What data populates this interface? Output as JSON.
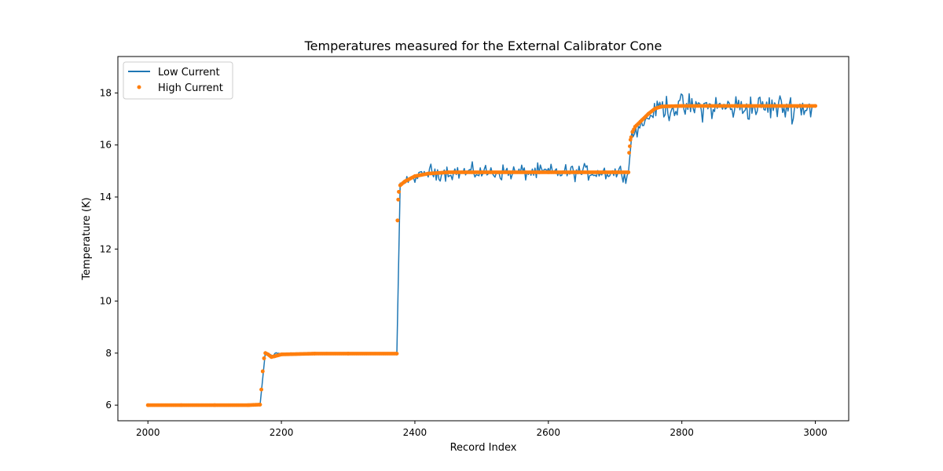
{
  "chart_data": {
    "type": "line",
    "title": "Temperatures measured for the External Calibrator Cone",
    "xlabel": "Record Index",
    "ylabel": "Temperature (K)",
    "xlim": [
      1955,
      3050
    ],
    "ylim": [
      5.4,
      19.4
    ],
    "xticks": [
      2000,
      2200,
      2400,
      2600,
      2800,
      3000
    ],
    "yticks": [
      6,
      8,
      10,
      12,
      14,
      16,
      18
    ],
    "xtick_labels": [
      "2000",
      "2200",
      "2400",
      "2600",
      "2800",
      "3000"
    ],
    "ytick_labels": [
      "6",
      "8",
      "10",
      "12",
      "14",
      "16",
      "18"
    ],
    "legend_position": "top-left",
    "grid": false,
    "colors": {
      "low": "#1f77b4",
      "high": "#ff7f0e"
    },
    "series": [
      {
        "name": "Low Current",
        "style": "line",
        "color": "#1f77b4",
        "segments": [
          {
            "x_start": 2000,
            "x_end": 2168,
            "level": 6.0,
            "noise": 0.0
          },
          {
            "x_start": 2168,
            "x_end": 2176,
            "from": 6.0,
            "to": 8.05,
            "kind": "ramp"
          },
          {
            "x_start": 2176,
            "x_end": 2190,
            "from": 8.05,
            "to": 7.85,
            "kind": "ramp"
          },
          {
            "x_start": 2190,
            "x_end": 2373,
            "level": 7.98,
            "noise": 0.06
          },
          {
            "x_start": 2373,
            "x_end": 2378,
            "from": 7.98,
            "to": 14.5,
            "kind": "ramp"
          },
          {
            "x_start": 2378,
            "x_end": 2420,
            "from": 14.5,
            "to": 14.95,
            "kind": "ramp",
            "noise": 0.25
          },
          {
            "x_start": 2420,
            "x_end": 2720,
            "level": 14.95,
            "noise": 0.45
          },
          {
            "x_start": 2720,
            "x_end": 2725,
            "from": 14.95,
            "to": 16.4,
            "kind": "ramp"
          },
          {
            "x_start": 2725,
            "x_end": 2765,
            "from": 16.4,
            "to": 17.45,
            "kind": "ramp",
            "noise": 0.4
          },
          {
            "x_start": 2765,
            "x_end": 3000,
            "level": 17.45,
            "noise": 0.75
          }
        ]
      },
      {
        "name": "High Current",
        "style": "scatter",
        "color": "#ff7f0e",
        "points": [
          [
            2000,
            6.0
          ],
          [
            2050,
            6.0
          ],
          [
            2100,
            6.0
          ],
          [
            2150,
            6.0
          ],
          [
            2168,
            6.02
          ],
          [
            2170,
            6.6
          ],
          [
            2172,
            7.3
          ],
          [
            2174,
            7.8
          ],
          [
            2176,
            8.0
          ],
          [
            2180,
            7.95
          ],
          [
            2185,
            7.85
          ],
          [
            2190,
            7.88
          ],
          [
            2200,
            7.95
          ],
          [
            2250,
            7.98
          ],
          [
            2300,
            7.98
          ],
          [
            2373,
            7.98
          ],
          [
            2374,
            13.1
          ],
          [
            2375,
            13.9
          ],
          [
            2376,
            14.2
          ],
          [
            2378,
            14.45
          ],
          [
            2385,
            14.6
          ],
          [
            2400,
            14.8
          ],
          [
            2420,
            14.9
          ],
          [
            2450,
            14.95
          ],
          [
            2500,
            14.95
          ],
          [
            2600,
            14.95
          ],
          [
            2700,
            14.95
          ],
          [
            2720,
            14.95
          ],
          [
            2721,
            15.7
          ],
          [
            2723,
            16.2
          ],
          [
            2726,
            16.5
          ],
          [
            2730,
            16.7
          ],
          [
            2740,
            16.95
          ],
          [
            2750,
            17.2
          ],
          [
            2760,
            17.4
          ],
          [
            2770,
            17.48
          ],
          [
            2800,
            17.5
          ],
          [
            2900,
            17.5
          ],
          [
            3000,
            17.5
          ]
        ]
      }
    ]
  }
}
